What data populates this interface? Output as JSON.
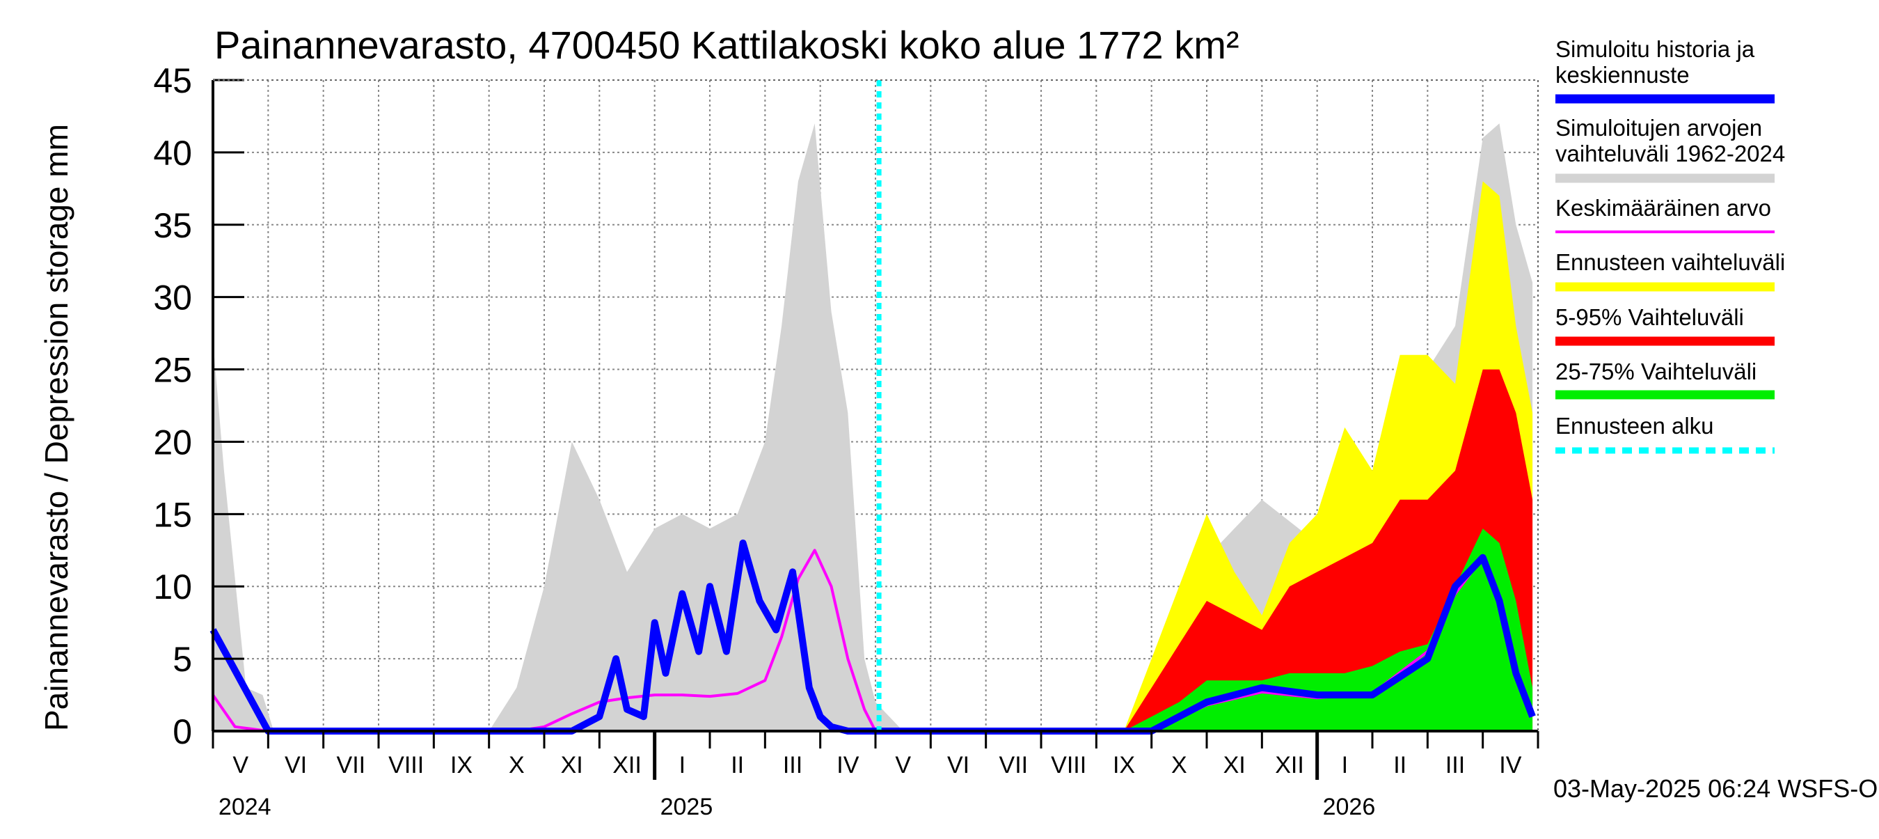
{
  "chart_data": {
    "type": "area",
    "title": "Painannevarasto, 4700450 Kattilakoski koko alue 1772 km²",
    "ylabel": "Painannevarasto / Depression storage    mm",
    "ylim": [
      0,
      45
    ],
    "yticks": [
      "0",
      "5",
      "10",
      "15",
      "20",
      "25",
      "30",
      "35",
      "40",
      "45"
    ],
    "months": [
      "V",
      "VI",
      "VII",
      "VIII",
      "IX",
      "X",
      "XI",
      "XII",
      "I",
      "II",
      "III",
      "IV",
      "V",
      "VI",
      "VII",
      "VIII",
      "IX",
      "X",
      "XI",
      "XII",
      "I",
      "II",
      "III",
      "IV"
    ],
    "years": [
      "2024",
      "2025",
      "2026"
    ],
    "grid": true,
    "legend_position": "right",
    "forecast_start": "2025-05-03",
    "footer": "03-May-2025 06:24 WSFS-O",
    "legend": [
      {
        "label": "Simuloitu historia ja keskiennuste",
        "color": "#0000ff"
      },
      {
        "label": "Simuloitujen arvojen vaihteluväli 1962-2024",
        "color": "#d3d3d3"
      },
      {
        "label": "Keskimääräinen arvo",
        "color": "#ff00ff"
      },
      {
        "label": "Ennusteen vaihteluväli",
        "color": "#ffff00"
      },
      {
        "label": "5-95% Vaihteluväli",
        "color": "#ff0000"
      },
      {
        "label": "25-75% Vaihteluväli",
        "color": "#00ee00"
      },
      {
        "label": "Ennusteen alku",
        "color": "#00ffff"
      }
    ],
    "series": [
      {
        "name": "Simuloitu historia ja keskiennuste",
        "x": [
          0,
          1,
          2,
          3,
          4,
          5,
          6,
          6.5,
          7,
          7.3,
          7.5,
          7.8,
          8,
          8.2,
          8.5,
          8.8,
          9,
          9.3,
          9.6,
          9.9,
          10.2,
          10.5,
          10.8,
          11,
          11.2,
          11.5,
          11.8,
          12,
          12.5,
          17,
          18,
          19,
          20,
          21,
          22,
          22.5,
          23,
          23.3,
          23.6,
          23.9
        ],
        "values": [
          7,
          0,
          0,
          0,
          0,
          0,
          0,
          0,
          1,
          5,
          1.5,
          1,
          7.5,
          4,
          9.5,
          5.5,
          10,
          5.5,
          13,
          9,
          7,
          11,
          3,
          1,
          0.3,
          0,
          0,
          0,
          0,
          0,
          2,
          3,
          2.5,
          2.5,
          5,
          10,
          12,
          9,
          4,
          1
        ]
      },
      {
        "name": "Keskimääräinen arvo",
        "x": [
          0,
          0.4,
          1,
          5.5,
          6,
          6.5,
          7,
          7.5,
          8,
          8.5,
          9,
          9.5,
          10,
          10.3,
          10.6,
          10.9,
          11.2,
          11.5,
          11.8,
          12,
          12.5,
          17,
          18,
          19,
          20,
          21,
          22,
          22.5,
          23,
          23.3,
          23.6,
          23.9
        ],
        "values": [
          2.5,
          0.3,
          0,
          0,
          0.3,
          1.2,
          2,
          2.3,
          2.5,
          2.5,
          2.4,
          2.6,
          3.5,
          6.5,
          10.5,
          12.5,
          10,
          5,
          1.5,
          0,
          0,
          0,
          1.8,
          2.7,
          2.3,
          2.6,
          5.5,
          9.5,
          12,
          9,
          4.5,
          1
        ]
      },
      {
        "name": "Simuloitujen arvojen vaihteluväli 1962-2024",
        "x": [
          0,
          0.2,
          0.6,
          0.9,
          1.1,
          5,
          5.5,
          6,
          6.5,
          7,
          7.5,
          8,
          8.5,
          9,
          9.5,
          10,
          10.3,
          10.6,
          10.9,
          11.2,
          11.5,
          11.8,
          12,
          12.5,
          16.5,
          17,
          18,
          19,
          20,
          21,
          21.5,
          22,
          22.5,
          23,
          23.3,
          23.6,
          23.9
        ],
        "values": [
          27,
          18,
          3,
          2.5,
          0,
          0,
          3,
          10,
          20,
          16,
          11,
          14,
          15,
          14,
          15,
          20,
          28,
          38,
          42,
          29,
          22,
          5,
          2,
          0,
          0,
          2,
          12,
          16,
          13,
          17,
          24,
          25,
          28,
          41,
          42,
          35,
          31
        ]
      },
      {
        "name": "Ennusteen vaihteluväli",
        "x": [
          16.5,
          17,
          17.5,
          18,
          18.5,
          19,
          19.5,
          20,
          20.5,
          21,
          21.5,
          22,
          22.5,
          23,
          23.3,
          23.6,
          23.9
        ],
        "values": [
          0,
          5,
          10,
          15,
          11,
          8,
          13,
          15,
          21,
          18,
          26,
          26,
          24,
          38,
          37,
          28,
          22
        ]
      },
      {
        "name": "5-95% Vaihteluväli",
        "x": [
          16.5,
          17,
          17.5,
          18,
          18.5,
          19,
          19.5,
          20,
          20.5,
          21,
          21.5,
          22,
          22.5,
          23,
          23.3,
          23.6,
          23.9
        ],
        "values": [
          0,
          3,
          6,
          9,
          8,
          7,
          10,
          11,
          12,
          13,
          16,
          16,
          18,
          25,
          25,
          22,
          16
        ]
      },
      {
        "name": "25-75% Vaihteluväli",
        "x": [
          16.5,
          17,
          17.5,
          18,
          18.5,
          19,
          19.5,
          20,
          20.5,
          21,
          21.5,
          22,
          22.5,
          23,
          23.3,
          23.6,
          23.9
        ],
        "values": [
          0,
          1,
          2,
          3.5,
          3.5,
          3.5,
          4,
          4,
          4,
          4.5,
          5.5,
          6,
          10,
          14,
          13,
          9,
          3
        ]
      }
    ]
  }
}
